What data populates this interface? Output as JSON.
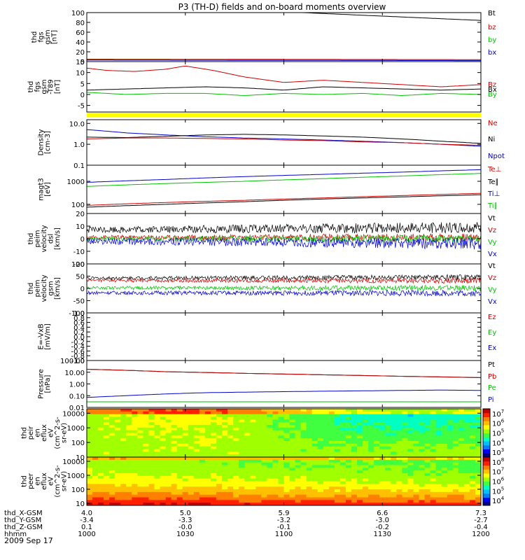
{
  "title": "P3 (TH-D) fields and on-board moments overview",
  "date_label": "2009 Sep 17",
  "colorbar_colors": [
    "#000080",
    "#0000ff",
    "#0080ff",
    "#00c0ff",
    "#00ffc0",
    "#40ff40",
    "#a0ff00",
    "#ffff00",
    "#ffc000",
    "#ff8000",
    "#ff2000",
    "#c00000"
  ],
  "chart_data": [
    {
      "id": "fgs_gsm",
      "type": "line",
      "ylabel": [
        "thd",
        "fgs",
        "gsm",
        "[nT]"
      ],
      "ylim": [
        0,
        100
      ],
      "y_ticks": [
        "0",
        "20",
        "40",
        "60",
        "80",
        "100"
      ],
      "legend": [
        {
          "label": "Bt",
          "color": "#000000"
        },
        {
          "label": "bz",
          "color": "#cc0000"
        },
        {
          "label": "by",
          "color": "#00c000"
        },
        {
          "label": "bx",
          "color": "#0000cc"
        }
      ],
      "series": [
        {
          "name": "Bt",
          "color": "#000000",
          "x": [
            0,
            0.3,
            0.52,
            1.0
          ],
          "y": [
            101,
            101,
            101,
            84
          ]
        },
        {
          "name": "bz",
          "color": "#cc0000",
          "x": [
            0,
            1
          ],
          "y": [
            5,
            4
          ]
        },
        {
          "name": "by",
          "color": "#00c000",
          "x": [
            0,
            1
          ],
          "y": [
            4,
            3
          ]
        },
        {
          "name": "bx",
          "color": "#0000cc",
          "x": [
            0,
            1
          ],
          "y": [
            3,
            2
          ]
        }
      ]
    },
    {
      "id": "fgs_gsm_t89",
      "type": "line",
      "ylabel": [
        "thd",
        "fgs",
        "gsm",
        "-T89",
        "[nT]"
      ],
      "ylim": [
        -8,
        15
      ],
      "y_ticks": [
        "-5",
        "0",
        "5",
        "10",
        "15"
      ],
      "legend": [
        {
          "label": "Bz",
          "color": "#cc0000"
        },
        {
          "label": "Bx",
          "color": "#000000"
        },
        {
          "label": "By",
          "color": "#00c000"
        }
      ],
      "series": [
        {
          "name": "Bz",
          "color": "#cc0000",
          "x": [
            0,
            0.05,
            0.12,
            0.2,
            0.25,
            0.32,
            0.4,
            0.5,
            0.6,
            0.7,
            0.8,
            0.9,
            1.0
          ],
          "y": [
            12,
            11,
            10.5,
            11.5,
            13,
            11,
            8,
            5.5,
            6.5,
            5.5,
            4.5,
            3.5,
            4.5
          ]
        },
        {
          "name": "Bx",
          "color": "#000000",
          "x": [
            0,
            0.1,
            0.2,
            0.3,
            0.4,
            0.5,
            0.6,
            0.7,
            0.8,
            0.9,
            1.0
          ],
          "y": [
            2,
            2.5,
            3,
            3.5,
            3,
            2,
            3.5,
            3,
            2.5,
            2,
            2.5
          ]
        },
        {
          "name": "By",
          "color": "#00c000",
          "x": [
            0,
            0.1,
            0.2,
            0.3,
            0.4,
            0.5,
            0.6,
            0.7,
            0.8,
            0.9,
            1.0
          ],
          "y": [
            1,
            0,
            0.5,
            0.5,
            -0.5,
            0.5,
            0,
            0.5,
            -0.5,
            0.5,
            0
          ]
        }
      ]
    },
    {
      "id": "density",
      "type": "line",
      "scale": "log",
      "ylabel": [
        "Density",
        "[cm-3]"
      ],
      "ylim": [
        0.1,
        15
      ],
      "y_ticks": [
        "0.1",
        "1.0",
        "10.0"
      ],
      "legend": [
        {
          "label": "Ne",
          "color": "#cc0000"
        },
        {
          "label": "Ni",
          "color": "#000000"
        },
        {
          "label": "Npot",
          "color": "#0000cc"
        }
      ],
      "series": [
        {
          "name": "Npot",
          "color": "#0000cc",
          "x": [
            0,
            0.1,
            0.2,
            0.3,
            0.4,
            0.5,
            0.6,
            0.7,
            0.8,
            0.9,
            1.0
          ],
          "y": [
            5,
            3.5,
            2.8,
            2.3,
            2,
            1.8,
            1.6,
            1.4,
            1.2,
            1.0,
            0.8
          ]
        },
        {
          "name": "Ni",
          "color": "#000000",
          "x": [
            0,
            0.1,
            0.2,
            0.3,
            0.4,
            0.5,
            0.6,
            0.7,
            0.8,
            0.9,
            1.0
          ],
          "y": [
            2.2,
            2.1,
            2.4,
            2.8,
            3.0,
            2.8,
            2.5,
            2.2,
            1.8,
            1.4,
            1.1
          ]
        },
        {
          "name": "Ne",
          "color": "#cc0000",
          "x": [
            0,
            0.1,
            0.2,
            0.3,
            0.4,
            0.5,
            0.6,
            0.7,
            0.8,
            0.9,
            1.0
          ],
          "y": [
            1.8,
            2.0,
            2.0,
            1.9,
            1.8,
            1.6,
            1.5,
            1.3,
            1.2,
            1.0,
            0.9
          ]
        }
      ]
    },
    {
      "id": "temperature",
      "type": "line",
      "scale": "log",
      "ylabel": [
        "magt3",
        "[eV]"
      ],
      "ylim": [
        40,
        5000
      ],
      "y_ticks": [
        "100",
        "1000"
      ],
      "legend": [
        {
          "label": "Te⊥",
          "color": "#cc0000"
        },
        {
          "label": "Te∥",
          "color": "#000000"
        },
        {
          "label": "Ti⊥",
          "color": "#0000cc"
        },
        {
          "label": "Ti∥",
          "color": "#00c000"
        }
      ],
      "series": [
        {
          "name": "Ti⊥",
          "color": "#0000cc",
          "x": [
            0,
            0.2,
            0.4,
            0.6,
            0.8,
            1.0
          ],
          "y": [
            900,
            1200,
            1600,
            2000,
            2500,
            3200
          ]
        },
        {
          "name": "Ti∥",
          "color": "#00c000",
          "x": [
            0,
            0.2,
            0.4,
            0.6,
            0.8,
            1.0
          ],
          "y": [
            600,
            800,
            1000,
            1300,
            1700,
            2200
          ]
        },
        {
          "name": "Te⊥",
          "color": "#cc0000",
          "x": [
            0,
            0.2,
            0.4,
            0.6,
            0.8,
            1.0
          ],
          "y": [
            90,
            120,
            150,
            190,
            240,
            300
          ]
        },
        {
          "name": "Te∥",
          "color": "#000000",
          "x": [
            0,
            0.2,
            0.4,
            0.6,
            0.8,
            1.0
          ],
          "y": [
            75,
            100,
            130,
            170,
            210,
            260
          ]
        }
      ]
    },
    {
      "id": "velocity_dsl",
      "type": "line",
      "ylabel": [
        "thd",
        "peim",
        "velocity",
        "dsl",
        "[km/s]"
      ],
      "ylim": [
        -20,
        20
      ],
      "y_ticks": [
        "-20",
        "-10",
        "0",
        "10",
        "20"
      ],
      "legend": [
        {
          "label": "Vt",
          "color": "#000000"
        },
        {
          "label": "Vz",
          "color": "#cc0000"
        },
        {
          "label": "Vy",
          "color": "#00c000"
        },
        {
          "label": "Vx",
          "color": "#0000cc"
        }
      ],
      "series": [
        {
          "name": "Vt",
          "color": "#000000",
          "x": [
            0,
            1
          ],
          "y": [
            7,
            9
          ],
          "noise": 3.5
        },
        {
          "name": "Vz",
          "color": "#cc0000",
          "x": [
            0,
            1
          ],
          "y": [
            1,
            1
          ],
          "noise": 2.5
        },
        {
          "name": "Vy",
          "color": "#00c000",
          "x": [
            0,
            1
          ],
          "y": [
            0,
            0
          ],
          "noise": 2.5
        },
        {
          "name": "Vx",
          "color": "#0000cc",
          "x": [
            0,
            1
          ],
          "y": [
            -2,
            -4
          ],
          "noise": 3.5
        }
      ]
    },
    {
      "id": "velocity_gsm",
      "type": "line",
      "ylabel": [
        "thd",
        "peim",
        "velocity",
        "gsm",
        "[km/s]"
      ],
      "ylim": [
        -100,
        100
      ],
      "y_ticks": [
        "-100",
        "-50",
        "0",
        "50",
        "100"
      ],
      "legend": [
        {
          "label": "Vt",
          "color": "#000000"
        },
        {
          "label": "Vz",
          "color": "#cc0000"
        },
        {
          "label": "Vy",
          "color": "#00c000"
        },
        {
          "label": "Vx",
          "color": "#0000cc"
        }
      ],
      "series": [
        {
          "name": "Vt",
          "color": "#000000",
          "x": [
            0,
            1
          ],
          "y": [
            42,
            45
          ],
          "noise": 9
        },
        {
          "name": "Vz",
          "color": "#cc0000",
          "x": [
            0,
            1
          ],
          "y": [
            32,
            32
          ],
          "noise": 9
        },
        {
          "name": "Vy",
          "color": "#00c000",
          "x": [
            0,
            1
          ],
          "y": [
            2,
            2
          ],
          "noise": 9
        },
        {
          "name": "Vx",
          "color": "#0000cc",
          "x": [
            0,
            1
          ],
          "y": [
            -18,
            -20
          ],
          "noise": 10
        }
      ]
    },
    {
      "id": "efield",
      "type": "line",
      "ylabel": [
        "E=-VxB",
        "[mV/m]"
      ],
      "ylim": [
        -1,
        1
      ],
      "y_ticks": [
        "-1.0",
        "-0.8",
        "-0.6",
        "-0.4",
        "-0.2",
        "0.0",
        "0.2",
        "0.4",
        "0.6",
        "0.8",
        "1.0"
      ],
      "legend": [
        {
          "label": "Ez",
          "color": "#cc0000"
        },
        {
          "label": "Ey",
          "color": "#00c000"
        },
        {
          "label": "Ex",
          "color": "#0000cc"
        }
      ],
      "series": []
    },
    {
      "id": "pressure",
      "type": "line",
      "scale": "log",
      "ylabel": [
        "Pressure",
        "[nPa]"
      ],
      "ylim": [
        0.01,
        100
      ],
      "y_ticks": [
        "0.01",
        "0.10",
        "1.00",
        "10.00",
        "100.00"
      ],
      "legend": [
        {
          "label": "Pt",
          "color": "#000000"
        },
        {
          "label": "Pb",
          "color": "#cc0000"
        },
        {
          "label": "Pe",
          "color": "#00c000"
        },
        {
          "label": "Pi",
          "color": "#0000cc"
        }
      ],
      "series": [
        {
          "name": "Pt",
          "color": "#000000",
          "x": [
            0,
            0.2,
            0.4,
            0.6,
            0.8,
            1.0
          ],
          "y": [
            18,
            11,
            8,
            6,
            4.5,
            3.5
          ]
        },
        {
          "name": "Pb",
          "color": "#cc0000",
          "x": [
            0,
            0.2,
            0.4,
            0.6,
            0.8,
            1.0
          ],
          "y": [
            18,
            11,
            8,
            6,
            4.5,
            3.4
          ]
        },
        {
          "name": "Pi",
          "color": "#0000cc",
          "x": [
            0,
            0.1,
            0.2,
            0.3,
            0.5,
            0.7,
            0.9,
            1.0
          ],
          "y": [
            0.07,
            0.1,
            0.14,
            0.18,
            0.22,
            0.26,
            0.3,
            0.28
          ]
        },
        {
          "name": "Pe",
          "color": "#00c000",
          "x": [
            0,
            0.2,
            0.4,
            0.6,
            0.8,
            1.0
          ],
          "y": [
            0.03,
            0.03,
            0.03,
            0.03,
            0.03,
            0.03
          ]
        }
      ]
    },
    {
      "id": "peir_spectrogram",
      "type": "heatmap",
      "scale": "log",
      "ylabel": [
        "thd",
        "peir",
        "en",
        "eflux",
        "eV",
        "(cm^2-s-",
        "sr-eV)"
      ],
      "ylim": [
        10,
        20000
      ],
      "y_ticks": [
        "10",
        "100",
        "1000",
        "10000"
      ],
      "colorbar_ticks": [
        "10^3",
        "10^4",
        "10^5",
        "10^6",
        "10^7"
      ]
    },
    {
      "id": "peer_spectrogram",
      "type": "heatmap",
      "scale": "log",
      "ylabel": [
        "thd",
        "peer",
        "en",
        "eflux",
        "eV",
        "(cm^2-s-",
        "sr-eV)"
      ],
      "ylim": [
        7,
        20000
      ],
      "y_ticks": [
        "10",
        "100",
        "1000",
        "10000"
      ],
      "colorbar_ticks": [
        "10^4",
        "10^5",
        "10^6",
        "10^7",
        "10^8"
      ]
    }
  ],
  "x_axis": {
    "row_labels": [
      "thd_X-GSM",
      "thd_Y-GSM",
      "thd_Z-GSM",
      "hhmm"
    ],
    "columns": [
      [
        "4.0",
        "-3.4",
        "0.1",
        "1000"
      ],
      [
        "5.0",
        "-3.3",
        "-0.0",
        "1030"
      ],
      [
        "5.9",
        "-3.2",
        "-0.1",
        "1100"
      ],
      [
        "6.6",
        "-3.0",
        "-0.2",
        "1130"
      ],
      [
        "7.3",
        "-2.7",
        "-0.4",
        "1200"
      ]
    ]
  }
}
